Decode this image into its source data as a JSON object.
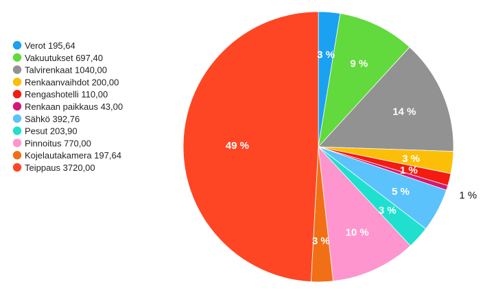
{
  "chart_data": {
    "type": "pie",
    "legend_position": "left",
    "slices": [
      {
        "name": "Verot",
        "value_text": "195,64",
        "value": 195.64,
        "color": "#1AA1F2",
        "percent_label": "3 %"
      },
      {
        "name": "Vakuutukset",
        "value_text": "697,40",
        "value": 697.4,
        "color": "#62D93C",
        "percent_label": "9 %"
      },
      {
        "name": "Talvirenkaat",
        "value_text": "1040,00",
        "value": 1040.0,
        "color": "#929292",
        "percent_label": "14 %"
      },
      {
        "name": "Renkaanvaihdot",
        "value_text": "200,00",
        "value": 200.0,
        "color": "#FBBF07",
        "percent_label": "3 %"
      },
      {
        "name": "Rengashotelli",
        "value_text": "110,00",
        "value": 110.0,
        "color": "#F31B12",
        "percent_label": "1 %"
      },
      {
        "name": "Renkaan paikkaus",
        "value_text": "43,00",
        "value": 43.0,
        "color": "#D41973",
        "percent_label": "1 %"
      },
      {
        "name": "Sähkö",
        "value_text": "392,76",
        "value": 392.76,
        "color": "#5BC2FC",
        "percent_label": "5 %"
      },
      {
        "name": "Pesut",
        "value_text": "203,90",
        "value": 203.9,
        "color": "#1FE0CE",
        "percent_label": "3 %"
      },
      {
        "name": "Pinnoitus",
        "value_text": "770,00",
        "value": 770.0,
        "color": "#FE95CE",
        "percent_label": "10 %"
      },
      {
        "name": "Kojelautakamera",
        "value_text": "197,64",
        "value": 197.64,
        "color": "#F17016",
        "percent_label": "3 %"
      },
      {
        "name": "Teippaus",
        "value_text": "3720,00",
        "value": 3720.0,
        "color": "#FE4624",
        "percent_label": "49 %"
      }
    ]
  }
}
